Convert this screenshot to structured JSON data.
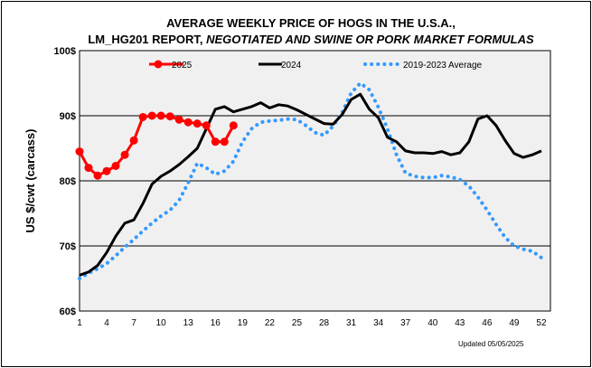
{
  "chart_data": {
    "type": "line",
    "title_line1": "AVERAGE WEEKLY PRICE OF HOGS IN THE U.S.A.,",
    "title_line2_prefix": "LM_HG201 REPORT, ",
    "title_line2_italic": "NEGOTIATED AND SWINE OR PORK MARKET FORMULAS",
    "ylabel": "US $/cwt (carcass)",
    "ylim": [
      60,
      100
    ],
    "y_ticks": [
      "60$",
      "70$",
      "80$",
      "90$",
      "100$"
    ],
    "y_tick_values": [
      60,
      70,
      80,
      90,
      100
    ],
    "x_range": [
      1,
      53
    ],
    "x_ticks": [
      "1",
      "4",
      "7",
      "10",
      "13",
      "16",
      "19",
      "22",
      "25",
      "28",
      "31",
      "34",
      "37",
      "40",
      "43",
      "46",
      "49",
      "52"
    ],
    "x_tick_values": [
      1,
      4,
      7,
      10,
      13,
      16,
      19,
      22,
      25,
      28,
      31,
      34,
      37,
      40,
      43,
      46,
      49,
      52
    ],
    "grid": "horizontal",
    "legend_position": "top",
    "note": "Updated 05/05/2025",
    "series": [
      {
        "name": "2025",
        "color": "#ff0000",
        "style": "solid-markers",
        "x": [
          1,
          2,
          3,
          4,
          5,
          6,
          7,
          8,
          9,
          10,
          11,
          12,
          13,
          14,
          15,
          16,
          17,
          18
        ],
        "values": [
          84.5,
          82.0,
          80.8,
          81.5,
          82.3,
          84.0,
          86.2,
          89.8,
          90.0,
          90.0,
          89.9,
          89.4,
          89.0,
          88.8,
          88.5,
          86.0,
          86.0,
          88.5
        ]
      },
      {
        "name": "2024",
        "color": "#000000",
        "style": "solid",
        "x": [
          1,
          2,
          3,
          4,
          5,
          6,
          7,
          8,
          9,
          10,
          11,
          12,
          13,
          14,
          15,
          16,
          17,
          18,
          19,
          20,
          21,
          22,
          23,
          24,
          25,
          26,
          27,
          28,
          29,
          30,
          31,
          32,
          33,
          34,
          35,
          36,
          37,
          38,
          39,
          40,
          41,
          42,
          43,
          44,
          45,
          46,
          47,
          48,
          49,
          50,
          51,
          52
        ],
        "values": [
          65.5,
          66.0,
          67.0,
          69.0,
          71.5,
          73.5,
          74.0,
          76.5,
          79.5,
          80.7,
          81.5,
          82.5,
          83.7,
          85.0,
          88.0,
          91.0,
          91.4,
          90.6,
          91.0,
          91.4,
          92.0,
          91.2,
          91.7,
          91.5,
          90.9,
          90.2,
          89.5,
          88.8,
          88.7,
          90.2,
          92.5,
          93.3,
          91.0,
          89.7,
          86.7,
          86.0,
          84.6,
          84.3,
          84.3,
          84.2,
          84.5,
          84.0,
          84.3,
          86.0,
          89.5,
          90.0,
          88.5,
          86.2,
          84.2,
          83.6,
          84.0,
          84.6
        ]
      },
      {
        "name": "2019-2023 Average",
        "color": "#3399ff",
        "style": "dotted",
        "x": [
          1,
          2,
          3,
          4,
          5,
          6,
          7,
          8,
          9,
          10,
          11,
          12,
          13,
          14,
          15,
          16,
          17,
          18,
          19,
          20,
          21,
          22,
          23,
          24,
          25,
          26,
          27,
          28,
          29,
          30,
          31,
          32,
          33,
          34,
          35,
          36,
          37,
          38,
          39,
          40,
          41,
          42,
          43,
          44,
          45,
          46,
          47,
          48,
          49,
          50,
          51,
          52
        ],
        "values": [
          65.0,
          65.8,
          66.5,
          67.3,
          68.5,
          69.8,
          71.0,
          72.3,
          73.5,
          74.6,
          75.5,
          77.0,
          79.7,
          82.7,
          82.0,
          81.0,
          81.5,
          83.0,
          86.0,
          88.0,
          89.0,
          89.2,
          89.3,
          89.5,
          89.4,
          88.5,
          87.4,
          87.0,
          88.4,
          90.5,
          93.5,
          95.0,
          94.0,
          91.3,
          88.0,
          84.0,
          81.2,
          80.7,
          80.5,
          80.5,
          80.8,
          80.6,
          80.2,
          79.2,
          77.5,
          75.5,
          73.3,
          71.3,
          70.0,
          69.5,
          69.2,
          68.2
        ]
      }
    ]
  }
}
